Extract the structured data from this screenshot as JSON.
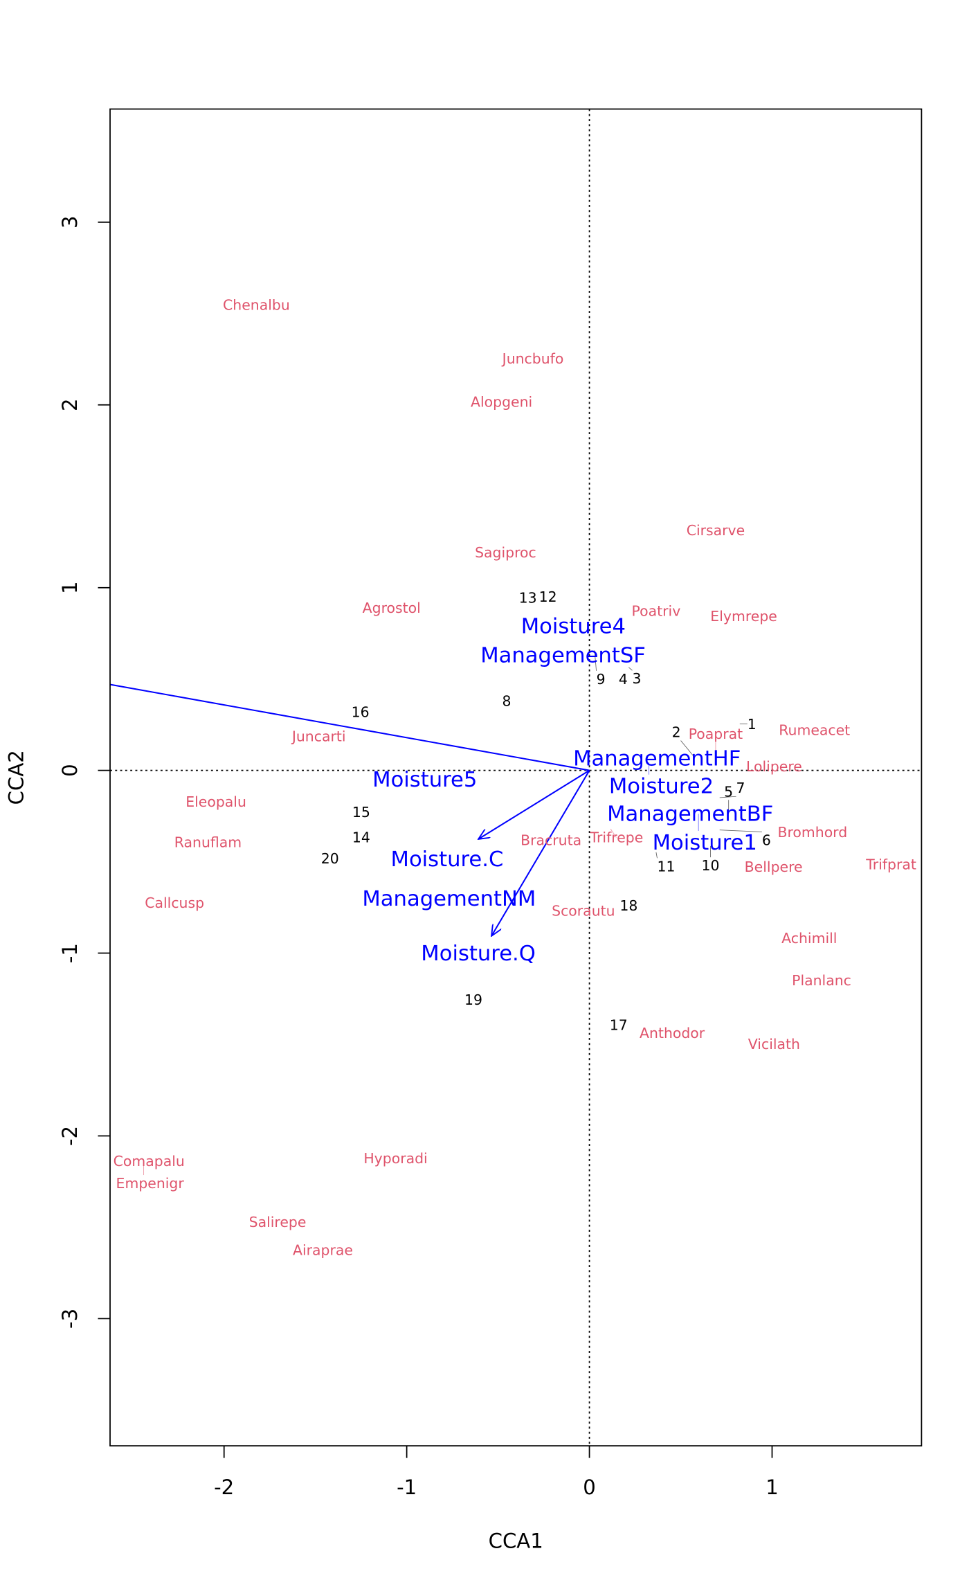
{
  "chart_data": {
    "type": "scatter",
    "xlabel": "CCA1",
    "ylabel": "CCA2",
    "xlim": [
      -2.624,
      1.818
    ],
    "ylim": [
      -3.696,
      3.619
    ],
    "xticks": [
      -2,
      -1,
      0,
      1
    ],
    "yticks": [
      -3,
      -2,
      -1,
      0,
      1,
      2,
      3
    ],
    "grid": false,
    "colors": {
      "species": "#DF536B",
      "sites": "#000000",
      "biplot": "#0000FF"
    },
    "species": [
      {
        "label": "Chenalbu",
        "x": -1.823,
        "y": 2.547
      },
      {
        "label": "Juncbufo",
        "x": -0.309,
        "y": 2.254
      },
      {
        "label": "Alopgeni",
        "x": -0.481,
        "y": 2.017
      },
      {
        "label": "Cirsarve",
        "x": 0.691,
        "y": 1.315
      },
      {
        "label": "Sagiproc",
        "x": -0.459,
        "y": 1.193
      },
      {
        "label": "Agrostol",
        "x": -1.083,
        "y": 0.89
      },
      {
        "label": "Poatriv",
        "x": 0.343,
        "y": 0.873
      },
      {
        "label": "Elymrepe",
        "x": 0.845,
        "y": 0.845
      },
      {
        "label": "Rumeacet",
        "x": 1.232,
        "y": 0.221
      },
      {
        "label": "Juncarti",
        "x": -1.481,
        "y": 0.188
      },
      {
        "label": "Poaprat",
        "x": 0.691,
        "y": 0.094
      },
      {
        "label": "Lolipere",
        "x": 0.967,
        "y": 0.022
      },
      {
        "label": "Eleopalu",
        "x": -2.044,
        "y": -0.171
      },
      {
        "label": "Ranuflam",
        "x": -2.088,
        "y": -0.392
      },
      {
        "label": "Bracruta",
        "x": -0.21,
        "y": -0.381
      },
      {
        "label": "Trifrepe",
        "x": 0.116,
        "y": -0.32
      },
      {
        "label": "Bromhord",
        "x": 1.221,
        "y": -0.337
      },
      {
        "label": "Bellpere",
        "x": 0.989,
        "y": -0.519
      },
      {
        "label": "Trifprat",
        "x": 1.652,
        "y": -0.514
      },
      {
        "label": "Callcusp",
        "x": -2.271,
        "y": -0.724
      },
      {
        "label": "Scorautu",
        "x": -0.033,
        "y": -0.768
      },
      {
        "label": "Achimill",
        "x": 1.204,
        "y": -0.917
      },
      {
        "label": "Planlanc",
        "x": 1.271,
        "y": -1.149
      },
      {
        "label": "Anthodor",
        "x": 0.453,
        "y": -1.436
      },
      {
        "label": "Vicilath",
        "x": 1.011,
        "y": -1.497
      },
      {
        "label": "Hyporadi",
        "x": -1.061,
        "y": -2.122
      },
      {
        "label": "Comapalu",
        "x": -2.455,
        "y": -2.138
      },
      {
        "label": "Empenigr",
        "x": -2.44,
        "y": -2.138
      },
      {
        "label": "Salirepe",
        "x": -1.707,
        "y": -2.47
      },
      {
        "label": "Airaprae",
        "x": -1.459,
        "y": -2.624
      }
    ],
    "sites": [
      {
        "label": "1",
        "x": 0.823,
        "y": 0.254
      },
      {
        "label": "2",
        "x": 0.575,
        "y": 0.072
      },
      {
        "label": "3",
        "x": 0.215,
        "y": 0.564
      },
      {
        "label": "4",
        "x": 0.166,
        "y": 0.508
      },
      {
        "label": "5",
        "x": 0.762,
        "y": -0.221
      },
      {
        "label": "6",
        "x": 0.713,
        "y": -0.326
      },
      {
        "label": "7",
        "x": 0.713,
        "y": -0.149
      },
      {
        "label": "8",
        "x": -0.453,
        "y": 0.381
      },
      {
        "label": "9",
        "x": 0.028,
        "y": 0.657
      },
      {
        "label": "10",
        "x": 0.663,
        "y": -0.414
      },
      {
        "label": "11",
        "x": 0.365,
        "y": -0.448
      },
      {
        "label": "12",
        "x": -0.227,
        "y": 0.95
      },
      {
        "label": "13",
        "x": -0.337,
        "y": 0.945
      },
      {
        "label": "14",
        "x": -1.249,
        "y": -0.365
      },
      {
        "label": "15",
        "x": -1.249,
        "y": -0.227
      },
      {
        "label": "16",
        "x": -1.254,
        "y": 0.32
      },
      {
        "label": "17",
        "x": 0.16,
        "y": -1.392
      },
      {
        "label": "18",
        "x": 0.171,
        "y": -0.74
      },
      {
        "label": "19",
        "x": -0.635,
        "y": -1.254
      },
      {
        "label": "20",
        "x": -1.42,
        "y": -0.481
      }
    ],
    "arrows": [
      {
        "x": -3.5,
        "y": 0.627
      },
      {
        "x": -0.608,
        "y": -0.376
      },
      {
        "x": -0.536,
        "y": -0.906
      }
    ],
    "biplot_labels": [
      {
        "label": "Moisture4",
        "x": -0.088,
        "y": 0.79
      },
      {
        "label": "ManagementSF",
        "x": -0.144,
        "y": 0.63
      },
      {
        "label": "ManagementHF",
        "x": 0.37,
        "y": 0.066
      },
      {
        "label": "Moisture2",
        "x": 0.326,
        "y": 0.044
      },
      {
        "label": "Moisture5",
        "x": -0.901,
        "y": -0.05
      },
      {
        "label": "ManagementBF",
        "x": 0.552,
        "y": -0.238
      },
      {
        "label": "Moisture1",
        "x": 0.597,
        "y": -0.238
      },
      {
        "label": "Moisture.C",
        "x": -0.779,
        "y": -0.486
      },
      {
        "label": "ManagementNM",
        "x": -0.768,
        "y": -0.702
      },
      {
        "label": "Moisture.Q",
        "x": -0.608,
        "y": -1.0
      }
    ]
  }
}
